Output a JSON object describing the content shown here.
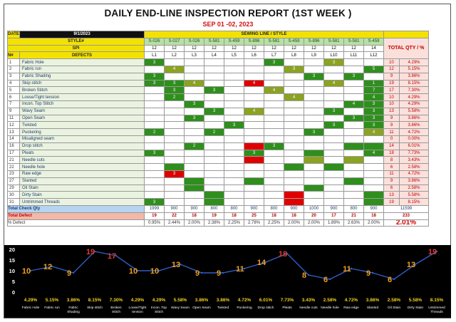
{
  "title": "DAILY END-LINE INSPECTION REPORT (1ST WEEK )",
  "subtitle": "SEP 01 -02, 2023",
  "header": {
    "date_label": "DATE",
    "date_value": "9/1/2023",
    "sewing_line_label": "SEWING LINE / STYLE",
    "style_label": "STYLE#",
    "spi_label": "SPI",
    "no_label": "N#",
    "defects_label": "DEFECTS",
    "total_label": "TOTAL QTY / %"
  },
  "styles": [
    "S-026",
    "S-027",
    "S-026",
    "S-581",
    "S-459",
    "S-896",
    "S-581",
    "S-459",
    "S-896",
    "S-581",
    "S-581",
    "S-459"
  ],
  "spi": [
    "12",
    "12",
    "12",
    "12",
    "12",
    "12",
    "12",
    "12",
    "12",
    "12",
    "12",
    "14"
  ],
  "lines": [
    "L1",
    "L2",
    "L3",
    "L4",
    "L5",
    "L6",
    "L7",
    "L8",
    "L9",
    "L10",
    "L11",
    "L12"
  ],
  "defects": [
    {
      "no": "1",
      "name": "Fabric Hole",
      "cells": [
        "3",
        "",
        "",
        "",
        "",
        "",
        "3",
        "",
        "",
        "3",
        "",
        ""
      ],
      "total": "10",
      "pct": "4.29%"
    },
    {
      "no": "2",
      "name": "Fabric run",
      "cells": [
        "",
        "4",
        "",
        "",
        "",
        "",
        "",
        "3",
        "",
        "",
        "",
        "5"
      ],
      "total": "12",
      "pct": "5.15%"
    },
    {
      "no": "3",
      "name": "Fabric Shading",
      "cells": [
        "3",
        "",
        "",
        "",
        "",
        "",
        "",
        "",
        "3",
        "",
        "3",
        ""
      ],
      "total": "9",
      "pct": "3.86%"
    },
    {
      "no": "4",
      "name": "Skip stitch",
      "cells": [
        "3",
        "3",
        "4",
        "",
        "",
        "4",
        "",
        "",
        "",
        "4",
        "",
        "1"
      ],
      "total": "19",
      "pct": "8.15%"
    },
    {
      "no": "5",
      "name": "Broken Stitch",
      "cells": [
        "",
        "3",
        "",
        "3",
        "",
        "",
        "4",
        "",
        "",
        "",
        "",
        "7"
      ],
      "total": "17",
      "pct": "7.30%"
    },
    {
      "no": "6",
      "name": "Loose/Tight tension",
      "cells": [
        "",
        "2",
        "",
        "",
        "",
        "",
        "",
        "4",
        "",
        "",
        "",
        "4"
      ],
      "total": "10",
      "pct": "4.29%"
    },
    {
      "no": "7",
      "name": "Incon. Top Stitch",
      "cells": [
        "",
        "",
        "3",
        "",
        "",
        "",
        "",
        "",
        "",
        "",
        "4",
        "3"
      ],
      "total": "10",
      "pct": "4.29%"
    },
    {
      "no": "9",
      "name": "Wavy Seam",
      "cells": [
        "",
        "",
        "",
        "3",
        "",
        "4",
        "",
        "",
        "",
        "3",
        "",
        "3"
      ],
      "total": "13",
      "pct": "5.58%"
    },
    {
      "no": "11",
      "name": "Open Seam",
      "cells": [
        "",
        "",
        "3",
        "",
        "",
        "",
        "",
        "",
        "",
        "",
        "3",
        "3"
      ],
      "total": "9",
      "pct": "3.86%"
    },
    {
      "no": "12",
      "name": "Twisted",
      "cells": [
        "",
        "",
        "",
        "",
        "3",
        "",
        "",
        "",
        "",
        "3",
        "",
        "3"
      ],
      "total": "9",
      "pct": "3.86%"
    },
    {
      "no": "13",
      "name": "Puckering",
      "cells": [
        "2",
        "",
        "",
        "2",
        "",
        "",
        "",
        "",
        "3",
        "",
        "",
        "4"
      ],
      "total": "11",
      "pct": "4.72%"
    },
    {
      "no": "14",
      "name": "Misaligned seam",
      "cells": [
        "",
        "",
        "",
        "",
        "",
        "",
        "",
        "",
        "",
        "",
        "",
        ""
      ],
      "total": "0",
      "pct": "0.00%"
    },
    {
      "no": "16",
      "name": "Drop stitch",
      "cells": [
        "",
        "",
        "2",
        "",
        "",
        "",
        "3",
        "",
        "",
        "",
        "",
        ""
      ],
      "total": "14",
      "pct": "6.01%"
    },
    {
      "no": "17",
      "name": "Pleats",
      "cells": [
        "3",
        "",
        "",
        "",
        "",
        "3",
        "",
        "",
        "",
        "",
        "",
        "4"
      ],
      "total": "18",
      "pct": "7.73%"
    },
    {
      "no": "21",
      "name": "Needle cuts",
      "cells": [
        "",
        "",
        "",
        "",
        "",
        "",
        "",
        "",
        "",
        "",
        "",
        ""
      ],
      "total": "8",
      "pct": "3.43%"
    },
    {
      "no": "22",
      "name": "Needle hole",
      "cells": [
        "",
        "",
        "",
        "",
        "",
        "",
        "",
        "",
        "",
        "",
        "",
        ""
      ],
      "total": "6",
      "pct": "2.58%"
    },
    {
      "no": "23",
      "name": "Raw edge",
      "cells": [
        "",
        "3",
        "",
        "",
        "",
        "",
        "",
        "",
        "",
        "",
        "",
        ""
      ],
      "total": "11",
      "pct": "4.72%"
    },
    {
      "no": "27",
      "name": "Slanted",
      "cells": [
        "",
        "",
        "",
        "",
        "",
        "",
        "",
        "",
        "",
        "",
        "",
        ""
      ],
      "total": "9",
      "pct": "3.86%"
    },
    {
      "no": "29",
      "name": "Oil Stain",
      "cells": [
        "",
        "",
        "",
        "",
        "",
        "",
        "",
        "",
        "",
        "",
        "",
        ""
      ],
      "total": "6",
      "pct": "2.58%"
    },
    {
      "no": "30",
      "name": "Dirty Stain",
      "cells": [
        "",
        "",
        "",
        "",
        "",
        "",
        "",
        "",
        "",
        "",
        "",
        ""
      ],
      "total": "13",
      "pct": "5.58%"
    },
    {
      "no": "31",
      "name": "Untrimmed Threads",
      "cells": [
        "3",
        "",
        "",
        "",
        "",
        "",
        "",
        "",
        "",
        "",
        "",
        ""
      ],
      "total": "19",
      "pct": "8.15%"
    }
  ],
  "cell_colors": [
    [
      "s1",
      "",
      "",
      "",
      "",
      "",
      "s1",
      "",
      "",
      "s2",
      "",
      ""
    ],
    [
      "",
      "s2",
      "",
      "",
      "",
      "",
      "",
      "s2",
      "",
      "",
      "",
      "s1"
    ],
    [
      "s1",
      "",
      "",
      "",
      "",
      "",
      "",
      "",
      "s1",
      "",
      "s1",
      ""
    ],
    [
      "s1",
      "s1",
      "s2",
      "",
      "",
      "s3",
      "",
      "",
      "",
      "s2",
      "",
      "s1"
    ],
    [
      "",
      "s1",
      "",
      "s1",
      "",
      "",
      "s2",
      "",
      "",
      "",
      "",
      "s1"
    ],
    [
      "",
      "s1",
      "",
      "",
      "",
      "",
      "",
      "s2",
      "",
      "",
      "",
      "s1"
    ],
    [
      "",
      "",
      "s1",
      "",
      "",
      "",
      "",
      "",
      "",
      "",
      "s1",
      "s1"
    ],
    [
      "",
      "",
      "",
      "s1",
      "",
      "s2",
      "",
      "",
      "",
      "s1",
      "",
      "s1"
    ],
    [
      "",
      "",
      "s1",
      "",
      "",
      "",
      "",
      "",
      "",
      "",
      "s1",
      "s1"
    ],
    [
      "",
      "",
      "",
      "",
      "s1",
      "",
      "",
      "",
      "",
      "s1",
      "",
      "s1"
    ],
    [
      "s1",
      "",
      "",
      "s1",
      "",
      "",
      "",
      "",
      "s1",
      "",
      "",
      "s2"
    ],
    [
      "",
      "",
      "",
      "",
      "",
      "",
      "",
      "",
      "",
      "",
      "",
      ""
    ],
    [
      "",
      "",
      "s1",
      "",
      "",
      "s3",
      "s1",
      "",
      "",
      "",
      "s1",
      "s1"
    ],
    [
      "s1",
      "",
      "",
      "",
      "",
      "s1",
      "",
      "",
      "s1",
      "",
      "",
      "s1"
    ],
    [
      "",
      "",
      "",
      "",
      "",
      "s3",
      "",
      "",
      "s2",
      "",
      "s2",
      ""
    ],
    [
      "",
      "s1",
      "",
      "",
      "",
      "",
      "",
      "s1",
      "",
      "s1",
      "",
      ""
    ],
    [
      "",
      "s3",
      "",
      "",
      "",
      "",
      "",
      "",
      "",
      "",
      "",
      ""
    ],
    [
      "",
      "",
      "s1",
      "",
      "",
      "s1",
      "",
      "",
      "",
      "",
      "s1",
      ""
    ],
    [
      "",
      "",
      "s1",
      "",
      "",
      "",
      "",
      "",
      "s1",
      "",
      "",
      ""
    ],
    [
      "",
      "",
      "",
      "s1",
      "",
      "",
      "",
      "s3",
      "",
      "",
      "",
      "s1"
    ],
    [
      "s1",
      "",
      "",
      "s1",
      "",
      "",
      "",
      "s3",
      "",
      "",
      "",
      "s1"
    ]
  ],
  "totals": {
    "check_label": "Total Check Qty",
    "check_values": [
      "1999",
      "900",
      "900",
      "800",
      "800",
      "900",
      "800",
      "900",
      "1000",
      "900",
      "800",
      "900"
    ],
    "check_total": "11599",
    "defect_label": "Total  Defect",
    "defect_values": [
      "19",
      "22",
      "18",
      "19",
      "18",
      "25",
      "18",
      "18",
      "20",
      "17",
      "21",
      "18"
    ],
    "defect_total": "233",
    "pct_label": "% Defect",
    "pct_values": [
      "0.95%",
      "2.44%",
      "2.00%",
      "2.38%",
      "2.25%",
      "2.78%",
      "2.25%",
      "2.00%",
      "2.00%",
      "1.89%",
      "2.63%",
      "2.00%"
    ],
    "pct_total": "2.01%"
  },
  "chart_data": {
    "type": "line",
    "categories": [
      "Fabric Hole",
      "Fabric run",
      "Fabric Shading",
      "Skip stitch",
      "Broken Stitch",
      "Loose/Tight tension",
      "Incon. Top Stitch",
      "Wavy Seam",
      "Open Seam",
      "Twisted",
      "Puckering",
      "Drop stitch",
      "Pleats",
      "Needle cuts",
      "Needle hole",
      "Raw edge",
      "Slanted",
      "Oil Stain",
      "Dirty Stain",
      "Untrimmed Threads"
    ],
    "values": [
      10,
      12,
      9,
      19,
      17,
      10,
      10,
      13,
      9,
      9,
      11,
      14,
      18,
      8,
      6,
      11,
      9,
      6,
      13,
      19
    ],
    "labels": [
      "10",
      "12",
      "9",
      "19",
      "17",
      "10",
      "10",
      "13",
      "9",
      "9",
      "11",
      "14",
      "18",
      "8",
      "6",
      "11",
      "9",
      "6",
      "13",
      "19"
    ],
    "percent_labels": [
      "4.29%",
      "5.15%",
      "3.86%",
      "8.15%",
      "7.30%",
      "4.29%",
      "4.29%",
      "5.58%",
      "3.86%",
      "3.86%",
      "4.72%",
      "6.01%",
      "7.73%",
      "3.43%",
      "2.58%",
      "4.72%",
      "3.86%",
      "2.58%",
      "5.58%",
      "8.15%"
    ],
    "yticks": [
      "20",
      "15",
      "10",
      "5",
      "0"
    ],
    "ylim": [
      0,
      20
    ],
    "line_color": "#2f5fc6",
    "label_color": "#f0a020",
    "highlight_color": "#e23a2a",
    "pct_color": "#f0d020"
  }
}
